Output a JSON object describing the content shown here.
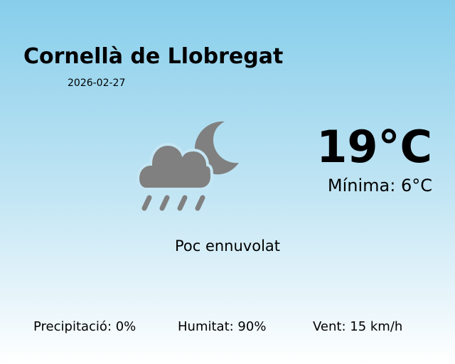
{
  "city": "Cornellà de Llobregat",
  "date": "2026-02-27",
  "temperature": "19°C",
  "minimum": "Mínima: 6°C",
  "description": "Poc ennuvolat",
  "icon": "night-partly-cloudy-rain-icon",
  "icon_color": "#808080",
  "stats": {
    "precipitation": "Precipitació: 0%",
    "humidity": "Humitat: 90%",
    "wind": "Vent: 15 km/h"
  }
}
